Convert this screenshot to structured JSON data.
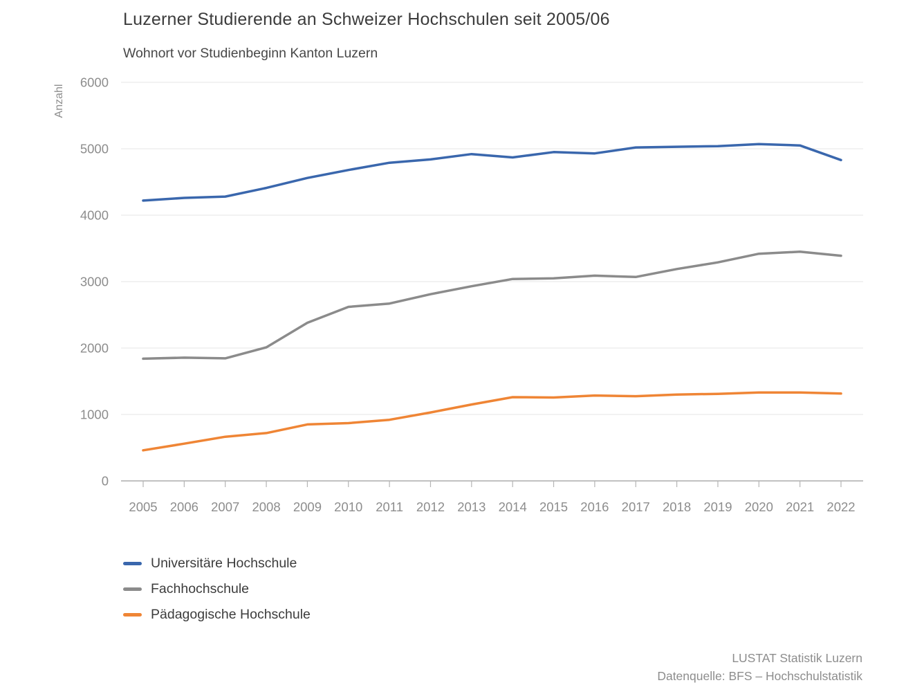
{
  "chart_data": {
    "type": "line",
    "title": "Luzerner Studierende an Schweizer Hochschulen seit 2005/06",
    "subtitle": "Wohnort vor Studienbeginn Kanton Luzern",
    "ylabel": "Anzahl",
    "ylim": [
      0,
      6000
    ],
    "yticks": [
      0,
      1000,
      2000,
      3000,
      4000,
      5000,
      6000
    ],
    "grid": true,
    "legend_position": "bottom-left",
    "categories": [
      "2005",
      "2006",
      "2007",
      "2008",
      "2009",
      "2010",
      "2011",
      "2012",
      "2013",
      "2014",
      "2015",
      "2016",
      "2017",
      "2018",
      "2019",
      "2020",
      "2021",
      "2022"
    ],
    "series": [
      {
        "name": "Universitäre Hochschule",
        "color": "#3a67ad",
        "values": [
          4220,
          4260,
          4280,
          4410,
          4560,
          4680,
          4790,
          4840,
          4920,
          4870,
          4950,
          4930,
          5020,
          5030,
          5040,
          5070,
          5050,
          4830
        ]
      },
      {
        "name": "Fachhochschule",
        "color": "#8b8b8b",
        "values": [
          1840,
          1855,
          1845,
          2010,
          2380,
          2620,
          2670,
          2810,
          2930,
          3040,
          3050,
          3090,
          3070,
          3190,
          3290,
          3420,
          3450,
          3390
        ]
      },
      {
        "name": "Pädagogische Hochschule",
        "color": "#ef8535",
        "values": [
          460,
          560,
          665,
          720,
          850,
          870,
          920,
          1030,
          1150,
          1260,
          1255,
          1285,
          1275,
          1300,
          1310,
          1330,
          1330,
          1315
        ]
      }
    ]
  },
  "source": {
    "line1": "LUSTAT Statistik Luzern",
    "line2": "Datenquelle: BFS – Hochschulstatistik"
  }
}
